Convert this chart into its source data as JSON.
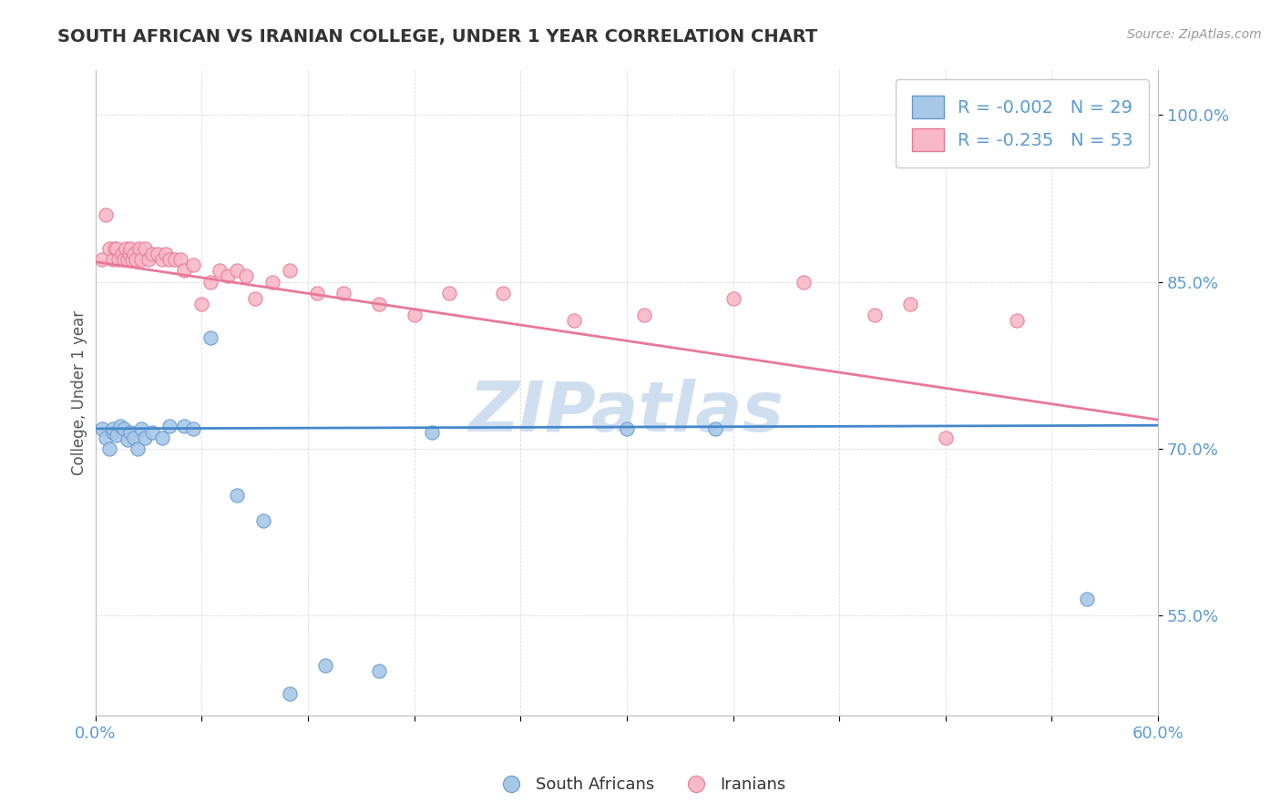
{
  "title": "SOUTH AFRICAN VS IRANIAN COLLEGE, UNDER 1 YEAR CORRELATION CHART",
  "source_text": "Source: ZipAtlas.com",
  "ylabel": "College, Under 1 year",
  "xlim": [
    0.0,
    0.6
  ],
  "ylim": [
    0.46,
    1.04
  ],
  "xticks": [
    0.0,
    0.06,
    0.12,
    0.18,
    0.24,
    0.3,
    0.36,
    0.42,
    0.48,
    0.54,
    0.6
  ],
  "xtick_labels": [
    "0.0%",
    "",
    "",
    "",
    "",
    "",
    "",
    "",
    "",
    "",
    "60.0%"
  ],
  "yticks": [
    0.55,
    0.7,
    0.85,
    1.0
  ],
  "ytick_labels": [
    "55.0%",
    "70.0%",
    "85.0%",
    "100.0%"
  ],
  "blue_color": "#a8c8e8",
  "blue_edge_color": "#6699cc",
  "pink_color": "#f8b8c8",
  "pink_edge_color": "#e87898",
  "blue_line_color": "#4488cc",
  "pink_line_color": "#e87898",
  "watermark": "ZIPatlas",
  "legend_r_blue": "R = -0.002",
  "legend_n_blue": "N = 29",
  "legend_r_pink": "R = -0.235",
  "legend_n_pink": "N = 53",
  "blue_scatter_x": [
    0.004,
    0.006,
    0.008,
    0.01,
    0.01,
    0.012,
    0.014,
    0.016,
    0.018,
    0.02,
    0.022,
    0.024,
    0.026,
    0.028,
    0.032,
    0.038,
    0.042,
    0.05,
    0.055,
    0.065,
    0.08,
    0.095,
    0.11,
    0.13,
    0.16,
    0.19,
    0.3,
    0.35,
    0.56
  ],
  "blue_scatter_y": [
    0.718,
    0.71,
    0.7,
    0.715,
    0.718,
    0.712,
    0.72,
    0.718,
    0.708,
    0.715,
    0.71,
    0.7,
    0.718,
    0.71,
    0.715,
    0.71,
    0.72,
    0.72,
    0.718,
    0.8,
    0.658,
    0.635,
    0.48,
    0.505,
    0.5,
    0.715,
    0.718,
    0.718,
    0.565
  ],
  "pink_scatter_x": [
    0.004,
    0.006,
    0.008,
    0.01,
    0.011,
    0.012,
    0.013,
    0.015,
    0.016,
    0.017,
    0.018,
    0.019,
    0.02,
    0.021,
    0.022,
    0.023,
    0.025,
    0.026,
    0.028,
    0.03,
    0.032,
    0.035,
    0.038,
    0.04,
    0.042,
    0.045,
    0.048,
    0.05,
    0.055,
    0.06,
    0.065,
    0.07,
    0.075,
    0.08,
    0.085,
    0.09,
    0.1,
    0.11,
    0.125,
    0.14,
    0.16,
    0.18,
    0.2,
    0.23,
    0.27,
    0.31,
    0.36,
    0.4,
    0.44,
    0.48,
    0.52,
    0.46,
    0.56
  ],
  "pink_scatter_y": [
    0.87,
    0.91,
    0.88,
    0.87,
    0.88,
    0.88,
    0.87,
    0.875,
    0.87,
    0.88,
    0.87,
    0.875,
    0.88,
    0.87,
    0.875,
    0.87,
    0.88,
    0.87,
    0.88,
    0.87,
    0.875,
    0.875,
    0.87,
    0.875,
    0.87,
    0.87,
    0.87,
    0.86,
    0.865,
    0.83,
    0.85,
    0.86,
    0.855,
    0.86,
    0.855,
    0.835,
    0.85,
    0.86,
    0.84,
    0.84,
    0.83,
    0.82,
    0.84,
    0.84,
    0.815,
    0.82,
    0.835,
    0.85,
    0.82,
    0.71,
    0.815,
    0.83,
    0.99
  ],
  "blue_trend_x": [
    0.0,
    0.6
  ],
  "blue_trend_y": [
    0.718,
    0.721
  ],
  "pink_trend_x": [
    0.0,
    0.6
  ],
  "pink_trend_y": [
    0.868,
    0.726
  ],
  "title_color": "#333333",
  "axis_color": "#5b9bd5",
  "watermark_color": "#d0dff0",
  "background_color": "#ffffff",
  "grid_color": "#cccccc"
}
